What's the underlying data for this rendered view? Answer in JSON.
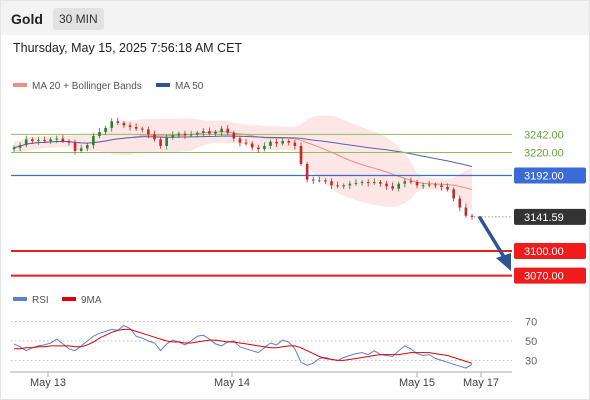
{
  "header": {
    "symbol": "Gold",
    "timeframe": "30 MIN"
  },
  "datetime": "Thursday, May 15, 2025 7:56:18 AM CET",
  "legend": {
    "upper": [
      {
        "label": "MA 20 + Bollinger Bands",
        "color": "#f28b82"
      },
      {
        "label": "MA 50",
        "color": "#2f5496"
      }
    ],
    "lower": [
      {
        "label": "RSI",
        "color": "#5b7fd1"
      },
      {
        "label": "9MA",
        "color": "#e00000"
      }
    ]
  },
  "colors": {
    "resistance": "#8dbf5a",
    "support": "#ee1c1c",
    "pivot": "#3a6bd6",
    "current_price_tag": "#333333",
    "arrow": "#2f5496",
    "candle_up": "#2e7d32",
    "candle_down": "#c62828",
    "bollinger_fill": "#fde3e3",
    "ma20": "#f28b82",
    "ma50": "#5566a8"
  },
  "chart_data": [
    {
      "type": "candlestick",
      "title": "Gold",
      "x_tick_labels": [
        "May 13",
        "May 14",
        "May 15",
        "May 17"
      ],
      "ylim": [
        3055,
        3290
      ],
      "levels": [
        {
          "value": 3242.0,
          "label": "3242.00",
          "kind": "resistance"
        },
        {
          "value": 3220.0,
          "label": "3220.00",
          "kind": "resistance"
        },
        {
          "value": 3192.0,
          "label": "3192.00",
          "kind": "pivot"
        },
        {
          "value": 3141.59,
          "label": "3141.59",
          "kind": "current"
        },
        {
          "value": 3100.0,
          "label": "3100.00",
          "kind": "support"
        },
        {
          "value": 3070.0,
          "label": "3070.00",
          "kind": "support"
        }
      ],
      "close_series": [
        3226,
        3229,
        3236,
        3234,
        3235,
        3234,
        3236,
        3237,
        3234,
        3232,
        3222,
        3225,
        3229,
        3240,
        3245,
        3250,
        3258,
        3256,
        3253,
        3251,
        3249,
        3248,
        3242,
        3236,
        3228,
        3238,
        3241,
        3243,
        3241,
        3242,
        3244,
        3246,
        3243,
        3245,
        3249,
        3244,
        3237,
        3232,
        3231,
        3226,
        3224,
        3228,
        3233,
        3231,
        3234,
        3232,
        3228,
        3206,
        3187,
        3186,
        3186,
        3185,
        3180,
        3179,
        3180,
        3182,
        3183,
        3184,
        3183,
        3184,
        3182,
        3179,
        3176,
        3182,
        3185,
        3184,
        3180,
        3180,
        3181,
        3180,
        3178,
        3175,
        3164,
        3153,
        3143,
        3141.59
      ],
      "series": [
        {
          "name": "MA 20 + Bollinger Bands"
        },
        {
          "name": "MA 50"
        }
      ]
    },
    {
      "type": "line",
      "title": "RSI",
      "ylim": [
        18,
        80
      ],
      "y_ticks": [
        30,
        50,
        70
      ],
      "series": [
        {
          "name": "RSI",
          "values": [
            47,
            44,
            40,
            43,
            45,
            46,
            48,
            52,
            47,
            42,
            40,
            45,
            50,
            55,
            58,
            60,
            62,
            61,
            66,
            63,
            55,
            53,
            50,
            48,
            40,
            47,
            51,
            49,
            46,
            50,
            55,
            56,
            52,
            47,
            45,
            49,
            50,
            44,
            42,
            40,
            38,
            43,
            48,
            46,
            51,
            49,
            42,
            28,
            25,
            27,
            32,
            33,
            31,
            30,
            33,
            35,
            37,
            38,
            36,
            40,
            36,
            35,
            34,
            40,
            45,
            42,
            37,
            35,
            36,
            32,
            30,
            28,
            26,
            24,
            22,
            26
          ]
        },
        {
          "name": "9MA",
          "values": [
            42,
            42,
            43,
            43,
            44,
            44,
            45,
            45,
            45,
            45,
            44,
            44,
            46,
            49,
            53,
            56,
            59,
            61,
            62,
            62,
            60,
            58,
            56,
            54,
            52,
            50,
            49,
            49,
            48,
            48,
            49,
            50,
            51,
            51,
            50,
            49,
            49,
            48,
            47,
            46,
            45,
            44,
            43,
            43,
            44,
            45,
            45,
            43,
            40,
            37,
            34,
            32,
            31,
            30,
            30,
            31,
            32,
            33,
            34,
            35,
            36,
            36,
            36,
            36,
            37,
            38,
            38,
            38,
            38,
            37,
            36,
            35,
            33,
            31,
            29,
            27
          ]
        }
      ]
    }
  ]
}
